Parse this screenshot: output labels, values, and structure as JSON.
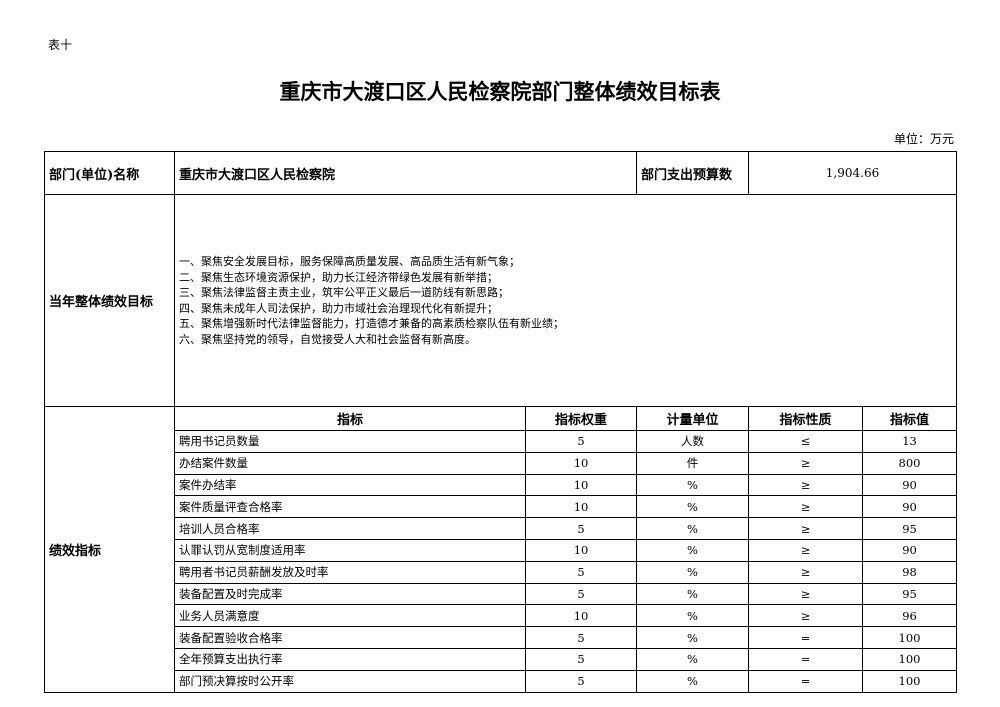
{
  "tag": "表十",
  "title": "重庆市大渡口区人民检察院部门整体绩效目标表",
  "unit": "单位：万元",
  "dept_label": "部门(单位)名称",
  "dept_name": "重庆市大渡口区人民检察院",
  "budget_label": "部门支出预算数",
  "budget_value": "1,904.66",
  "goal_label": "当年整体绩效目标",
  "goals": [
    "一、聚焦安全发展目标，服务保障高质量发展、高品质生活有新气象；",
    "二、聚焦生态环境资源保护，助力长江经济带绿色发展有新举措；",
    "三、聚焦法律监督主责主业，筑牢公平正义最后一道防线有新思路；",
    "四、聚焦未成年人司法保护，助力市域社会治理现代化有新提升；",
    "五、聚焦增强新时代法律监督能力，打造德才兼备的高素质检察队伍有新业绩；",
    "六、聚焦坚持党的领导，自觉接受人大和社会监督有新高度。"
  ],
  "perf_label": "绩效指标",
  "headers": [
    "指标",
    "指标权重",
    "计量单位",
    "指标性质",
    "指标值"
  ],
  "rows": [
    [
      "聘用书记员数量",
      "5",
      "人数",
      "≤",
      "13"
    ],
    [
      "办结案件数量",
      "10",
      "件",
      "≥",
      "800"
    ],
    [
      "案件办结率",
      "10",
      "%",
      "≥",
      "90"
    ],
    [
      "案件质量评查合格率",
      "10",
      "%",
      "≥",
      "90"
    ],
    [
      "培训人员合格率",
      "5",
      "%",
      "≥",
      "95"
    ],
    [
      "认罪认罚从宽制度适用率",
      "10",
      "%",
      "≥",
      "90"
    ],
    [
      "聘用者书记员薪酬发放及时率",
      "5",
      "%",
      "≥",
      "98"
    ],
    [
      "装备配置及时完成率",
      "5",
      "%",
      "≥",
      "95"
    ],
    [
      "业务人员满意度",
      "10",
      "%",
      "≥",
      "96"
    ],
    [
      "装备配置验收合格率",
      "5",
      "%",
      "=",
      "100"
    ],
    [
      "全年预算支出执行率",
      "5",
      "%",
      "=",
      "100"
    ],
    [
      "部门预决算按时公开率",
      "5",
      "%",
      "=",
      "100"
    ]
  ]
}
